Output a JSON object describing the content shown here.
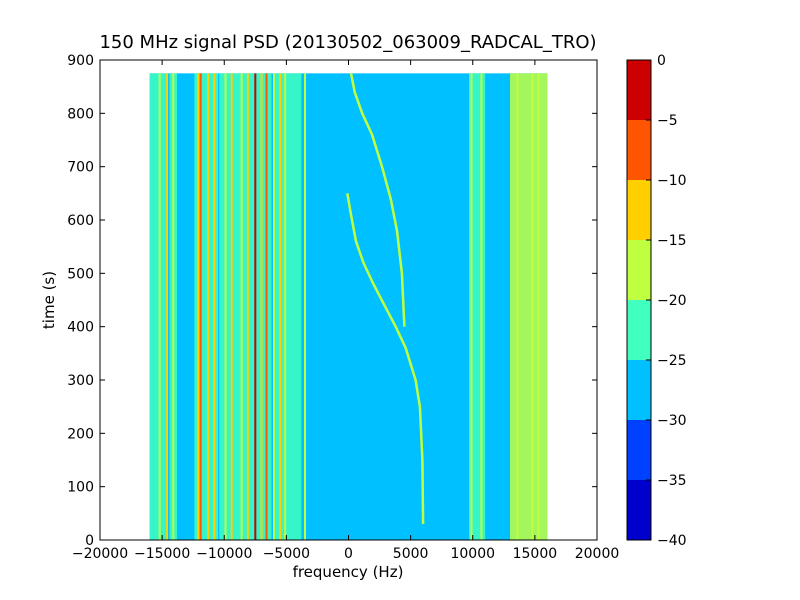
{
  "chart_data": {
    "type": "heatmap",
    "title": "150 MHz signal PSD (20130502_063009_RADCAL_TRO)",
    "xlabel": "frequency (Hz)",
    "ylabel": "time (s)",
    "xlim": [
      -20000,
      20000
    ],
    "ylim": [
      0,
      900
    ],
    "x_ticks": [
      -20000,
      -15000,
      -10000,
      -5000,
      0,
      5000,
      10000,
      15000,
      20000
    ],
    "y_ticks": [
      0,
      100,
      200,
      300,
      400,
      500,
      600,
      700,
      800,
      900
    ],
    "grid": false,
    "data_extent": {
      "x": [
        -16000,
        16000
      ],
      "y": [
        0,
        875
      ]
    },
    "background_level": -27,
    "colorbar": {
      "levels": [
        -40,
        -35,
        -30,
        -25,
        -20,
        -15,
        -10,
        -5,
        0
      ],
      "ticks": [
        0,
        -5,
        -10,
        -15,
        -20,
        -25,
        -30,
        -35,
        -40
      ],
      "colors": [
        "#0000cc",
        "#0040ff",
        "#00c0ff",
        "#40ffbf",
        "#bfff40",
        "#ffcf00",
        "#ff5500",
        "#cc0000"
      ]
    },
    "vertical_bands": [
      {
        "x_from": -16000,
        "x_to": -14600,
        "level": -22
      },
      {
        "x_from": -14400,
        "x_to": -13800,
        "level": -22
      },
      {
        "x_from": -12400,
        "x_to": -10500,
        "level": -22
      },
      {
        "x_from": -10400,
        "x_to": -6200,
        "level": -22
      },
      {
        "x_from": -6000,
        "x_to": -3800,
        "level": -22
      },
      {
        "x_from": 9700,
        "x_to": 11000,
        "level": -22
      },
      {
        "x_from": 13000,
        "x_to": 16000,
        "level": -20
      }
    ],
    "lines": [
      {
        "x": -15200,
        "level": -17
      },
      {
        "x": -14600,
        "level": -12
      },
      {
        "x": -14100,
        "level": -17
      },
      {
        "x": -12100,
        "level": -12
      },
      {
        "x": -11900,
        "level": -7
      },
      {
        "x": -11300,
        "level": -12
      },
      {
        "x": -10800,
        "level": -12
      },
      {
        "x": -9900,
        "level": -17
      },
      {
        "x": -9400,
        "level": -12
      },
      {
        "x": -8600,
        "level": -17
      },
      {
        "x": -8100,
        "level": -12
      },
      {
        "x": -7500,
        "level": -2
      },
      {
        "x": -7000,
        "level": -12
      },
      {
        "x": -6600,
        "level": -7
      },
      {
        "x": -6000,
        "level": -17
      },
      {
        "x": -5500,
        "level": -12
      },
      {
        "x": -5100,
        "level": -17
      },
      {
        "x": -3500,
        "level": -17
      },
      {
        "x": 9900,
        "level": -17
      },
      {
        "x": 10700,
        "level": -17
      },
      {
        "x": 13600,
        "level": -17
      },
      {
        "x": 14800,
        "level": -17
      },
      {
        "x": 15300,
        "level": -17
      }
    ],
    "sweep_traces": [
      {
        "level": -17,
        "points": [
          [
            6000,
            30
          ],
          [
            5950,
            150
          ],
          [
            5750,
            250
          ],
          [
            5400,
            300
          ],
          [
            4600,
            360
          ],
          [
            3800,
            400
          ],
          [
            2900,
            440
          ],
          [
            2000,
            480
          ],
          [
            1200,
            520
          ],
          [
            600,
            560
          ],
          [
            200,
            610
          ],
          [
            -100,
            650
          ]
        ]
      },
      {
        "level": -17,
        "points": [
          [
            4500,
            400
          ],
          [
            4300,
            500
          ],
          [
            3900,
            580
          ],
          [
            3400,
            640
          ],
          [
            2700,
            700
          ],
          [
            1900,
            760
          ],
          [
            1100,
            800
          ],
          [
            500,
            840
          ],
          [
            200,
            875
          ]
        ]
      }
    ]
  }
}
